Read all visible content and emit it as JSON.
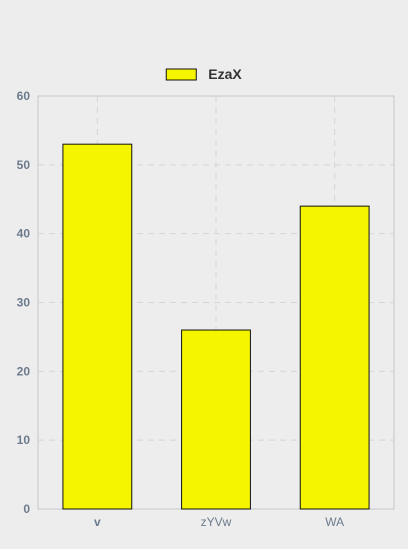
{
  "chart_data": {
    "type": "bar",
    "categories": [
      "v",
      "zYVw",
      "WA"
    ],
    "series": [
      {
        "name": "EzaX",
        "values": [
          53,
          26,
          44
        ]
      }
    ],
    "ylim": [
      0,
      60
    ],
    "y_ticks": [
      0,
      10,
      20,
      30,
      40,
      50,
      60
    ],
    "grid": true,
    "legend_position": "top-center",
    "colors": {
      "bar_fill": "#f5f500",
      "bar_stroke": "#111111",
      "background": "#ededed",
      "grid": "#d6d6d6",
      "axis_text": "#6b7b8c",
      "legend_text": "#333333"
    }
  }
}
